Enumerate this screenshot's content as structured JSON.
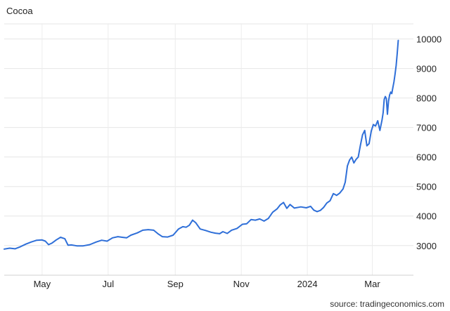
{
  "chart_data": {
    "type": "line",
    "title": "Cocoa",
    "source": "source: tradingeconomics.com",
    "xlabel": "",
    "ylabel": "",
    "ylim": [
      2000,
      10500
    ],
    "y_ticks": [
      3000,
      4000,
      5000,
      6000,
      7000,
      8000,
      9000,
      10000
    ],
    "y_tick_labels": [
      "3000",
      "4000",
      "5000",
      "6000",
      "7000",
      "8000",
      "9000",
      "10000"
    ],
    "x_tick_labels": [
      "May",
      "Jul",
      "Sep",
      "Nov",
      "2024",
      "Mar"
    ],
    "x_tick_dates": [
      "2023-05-01",
      "2023-07-01",
      "2023-09-01",
      "2023-11-01",
      "2024-01-01",
      "2024-03-01"
    ],
    "x_range": [
      "2023-03-27",
      "2024-04-08"
    ],
    "grid": true,
    "series": [
      {
        "color": "#2f6fd8",
        "points": [
          [
            "2023-03-27",
            2880
          ],
          [
            "2023-04-01",
            2910
          ],
          [
            "2023-04-06",
            2890
          ],
          [
            "2023-04-11",
            2960
          ],
          [
            "2023-04-16",
            3050
          ],
          [
            "2023-04-21",
            3120
          ],
          [
            "2023-04-26",
            3180
          ],
          [
            "2023-05-01",
            3190
          ],
          [
            "2023-05-04",
            3150
          ],
          [
            "2023-05-07",
            3030
          ],
          [
            "2023-05-10",
            3080
          ],
          [
            "2023-05-14",
            3190
          ],
          [
            "2023-05-18",
            3280
          ],
          [
            "2023-05-22",
            3230
          ],
          [
            "2023-05-25",
            3010
          ],
          [
            "2023-05-28",
            3020
          ],
          [
            "2023-06-02",
            2990
          ],
          [
            "2023-06-08",
            2990
          ],
          [
            "2023-06-14",
            3030
          ],
          [
            "2023-06-20",
            3120
          ],
          [
            "2023-06-25",
            3180
          ],
          [
            "2023-06-30",
            3150
          ],
          [
            "2023-07-05",
            3260
          ],
          [
            "2023-07-10",
            3300
          ],
          [
            "2023-07-14",
            3280
          ],
          [
            "2023-07-18",
            3260
          ],
          [
            "2023-07-22",
            3350
          ],
          [
            "2023-07-28",
            3430
          ],
          [
            "2023-08-02",
            3520
          ],
          [
            "2023-08-07",
            3540
          ],
          [
            "2023-08-12",
            3520
          ],
          [
            "2023-08-16",
            3400
          ],
          [
            "2023-08-20",
            3300
          ],
          [
            "2023-08-25",
            3290
          ],
          [
            "2023-08-30",
            3350
          ],
          [
            "2023-09-04",
            3560
          ],
          [
            "2023-09-08",
            3640
          ],
          [
            "2023-09-11",
            3620
          ],
          [
            "2023-09-14",
            3690
          ],
          [
            "2023-09-17",
            3860
          ],
          [
            "2023-09-20",
            3770
          ],
          [
            "2023-09-24",
            3560
          ],
          [
            "2023-09-29",
            3510
          ],
          [
            "2023-10-04",
            3450
          ],
          [
            "2023-10-08",
            3420
          ],
          [
            "2023-10-12",
            3400
          ],
          [
            "2023-10-15",
            3470
          ],
          [
            "2023-10-19",
            3410
          ],
          [
            "2023-10-23",
            3520
          ],
          [
            "2023-10-28",
            3580
          ],
          [
            "2023-11-02",
            3720
          ],
          [
            "2023-11-06",
            3740
          ],
          [
            "2023-11-10",
            3880
          ],
          [
            "2023-11-14",
            3860
          ],
          [
            "2023-11-18",
            3900
          ],
          [
            "2023-11-22",
            3830
          ],
          [
            "2023-11-26",
            3920
          ],
          [
            "2023-11-30",
            4130
          ],
          [
            "2023-12-04",
            4240
          ],
          [
            "2023-12-07",
            4380
          ],
          [
            "2023-12-10",
            4460
          ],
          [
            "2023-12-13",
            4260
          ],
          [
            "2023-12-16",
            4390
          ],
          [
            "2023-12-20",
            4270
          ],
          [
            "2023-12-26",
            4310
          ],
          [
            "2023-12-31",
            4280
          ],
          [
            "2024-01-04",
            4330
          ],
          [
            "2024-01-07",
            4200
          ],
          [
            "2024-01-10",
            4150
          ],
          [
            "2024-01-13",
            4190
          ],
          [
            "2024-01-16",
            4290
          ],
          [
            "2024-01-19",
            4440
          ],
          [
            "2024-01-22",
            4520
          ],
          [
            "2024-01-25",
            4760
          ],
          [
            "2024-01-28",
            4700
          ],
          [
            "2024-01-31",
            4780
          ],
          [
            "2024-02-03",
            4920
          ],
          [
            "2024-02-05",
            5150
          ],
          [
            "2024-02-07",
            5700
          ],
          [
            "2024-02-09",
            5900
          ],
          [
            "2024-02-11",
            6000
          ],
          [
            "2024-02-13",
            5800
          ],
          [
            "2024-02-15",
            5920
          ],
          [
            "2024-02-17",
            6000
          ],
          [
            "2024-02-19",
            6400
          ],
          [
            "2024-02-21",
            6750
          ],
          [
            "2024-02-23",
            6900
          ],
          [
            "2024-02-25",
            6380
          ],
          [
            "2024-02-27",
            6450
          ],
          [
            "2024-02-29",
            6880
          ],
          [
            "2024-03-02",
            7100
          ],
          [
            "2024-03-04",
            7050
          ],
          [
            "2024-03-06",
            7230
          ],
          [
            "2024-03-08",
            6900
          ],
          [
            "2024-03-10",
            7250
          ],
          [
            "2024-03-11",
            7500
          ],
          [
            "2024-03-12",
            7950
          ],
          [
            "2024-03-13",
            8050
          ],
          [
            "2024-03-14",
            7980
          ],
          [
            "2024-03-15",
            7450
          ],
          [
            "2024-03-16",
            7900
          ],
          [
            "2024-03-17",
            8100
          ],
          [
            "2024-03-18",
            8200
          ],
          [
            "2024-03-19",
            8150
          ],
          [
            "2024-03-20",
            8350
          ],
          [
            "2024-03-21",
            8550
          ],
          [
            "2024-03-22",
            8800
          ],
          [
            "2024-03-23",
            9100
          ],
          [
            "2024-03-24",
            9500
          ],
          [
            "2024-03-25",
            9950
          ]
        ]
      }
    ]
  }
}
